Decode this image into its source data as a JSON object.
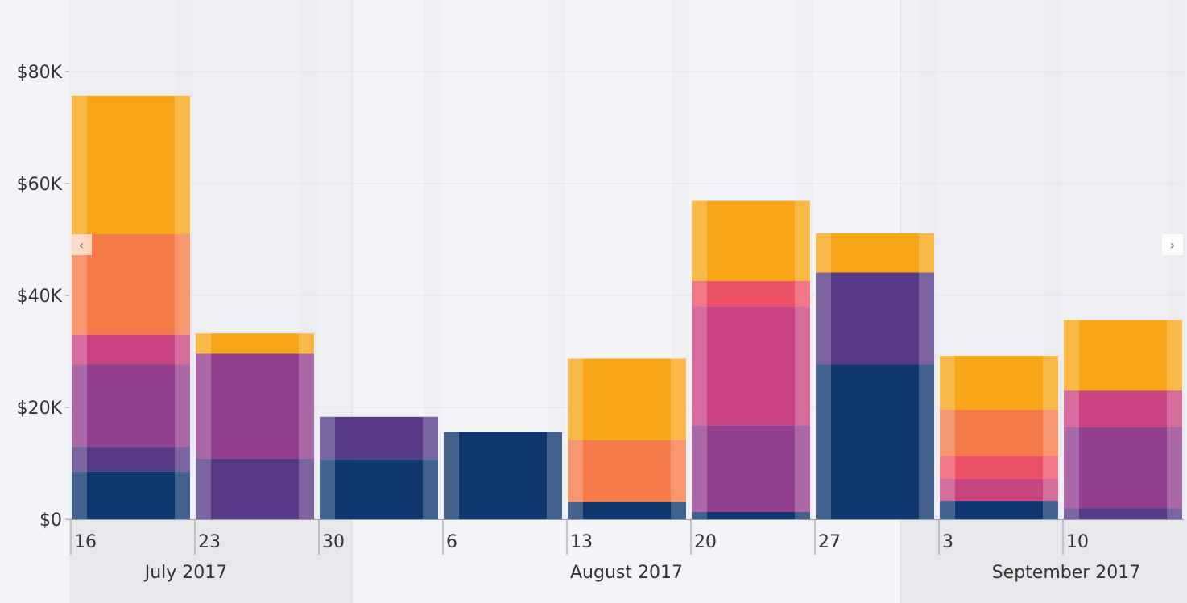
{
  "chart_data": {
    "type": "bar",
    "stacked": true,
    "y_axis": {
      "ylim": [
        0,
        92000
      ],
      "ticks": [
        0,
        20000,
        40000,
        60000,
        80000
      ],
      "tick_labels": [
        "$0",
        "$20K",
        "$40K",
        "$60K",
        "$80K"
      ]
    },
    "x_axis": {
      "day_labels": [
        "16",
        "23",
        "30",
        "6",
        "13",
        "20",
        "27",
        "3",
        "10"
      ],
      "month_labels": [
        "July 2017",
        "August 2017",
        "September 2017"
      ]
    },
    "grid": true,
    "series_colors": [
      "#10376f",
      "#553a87",
      "#933f8d",
      "#c84380",
      "#ed5168",
      "#f47a48",
      "#f6a616"
    ],
    "bars": [
      {
        "label": "16",
        "segments": [
          8500,
          4500,
          14700,
          5300,
          0,
          18000,
          24700
        ]
      },
      {
        "label": "23",
        "segments": [
          0,
          10800,
          18800,
          0,
          0,
          0,
          3600
        ]
      },
      {
        "label": "30",
        "segments": [
          10700,
          7600,
          0,
          0,
          0,
          0,
          0
        ]
      },
      {
        "label": "6",
        "segments": [
          15600,
          0,
          0,
          0,
          0,
          0,
          0
        ]
      },
      {
        "label": "13",
        "segments": [
          3100,
          0,
          0,
          0,
          0,
          11100,
          14500
        ]
      },
      {
        "label": "20",
        "segments": [
          1300,
          0,
          15500,
          21300,
          4500,
          0,
          14300
        ]
      },
      {
        "label": "27",
        "segments": [
          27700,
          16400,
          0,
          0,
          0,
          0,
          7000
        ]
      },
      {
        "label": "3",
        "segments": [
          3300,
          0,
          0,
          4000,
          4000,
          8300,
          9600
        ]
      },
      {
        "label": "10",
        "segments": [
          0,
          2000,
          14500,
          6500,
          0,
          0,
          12600
        ]
      }
    ]
  },
  "nav": {
    "prev_label": "‹",
    "next_label": "›"
  }
}
